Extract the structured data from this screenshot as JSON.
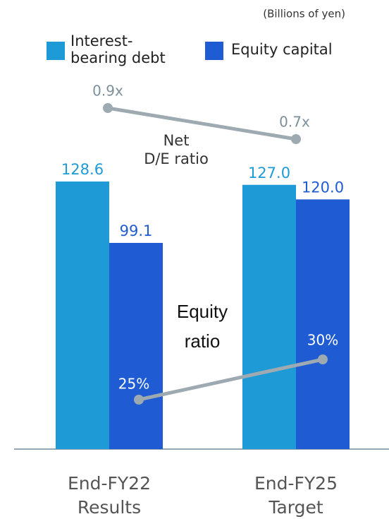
{
  "chart_data": {
    "type": "bar",
    "subtitle": "(Billions of yen)",
    "categories": [
      "End-FY22\nResults",
      "End-FY25\nTarget"
    ],
    "ylim": [
      0,
      150
    ],
    "series": [
      {
        "name": "Interest-\nbearing debt",
        "color": "#1e9ad6",
        "values": [
          128.6,
          127.0
        ],
        "value_labels": [
          "128.6",
          "127.0"
        ]
      },
      {
        "name": "Equity capital",
        "color": "#1f5bd3",
        "values": [
          99.1,
          120.0
        ],
        "value_labels": [
          "99.1",
          "120.0"
        ]
      }
    ],
    "lines": [
      {
        "name": "Net\nD/E ratio",
        "type": "line",
        "color": "#9eaab1",
        "values": [
          0.9,
          0.7
        ],
        "value_labels": [
          "0.9x",
          "0.7x"
        ],
        "ylim": [
          0.6,
          1.0
        ]
      },
      {
        "name": "Equity\nratio",
        "type": "line",
        "color": "#9eaab1",
        "values": [
          25,
          30
        ],
        "value_labels": [
          "25%",
          "30%"
        ],
        "ylim": [
          20,
          35
        ]
      }
    ]
  }
}
